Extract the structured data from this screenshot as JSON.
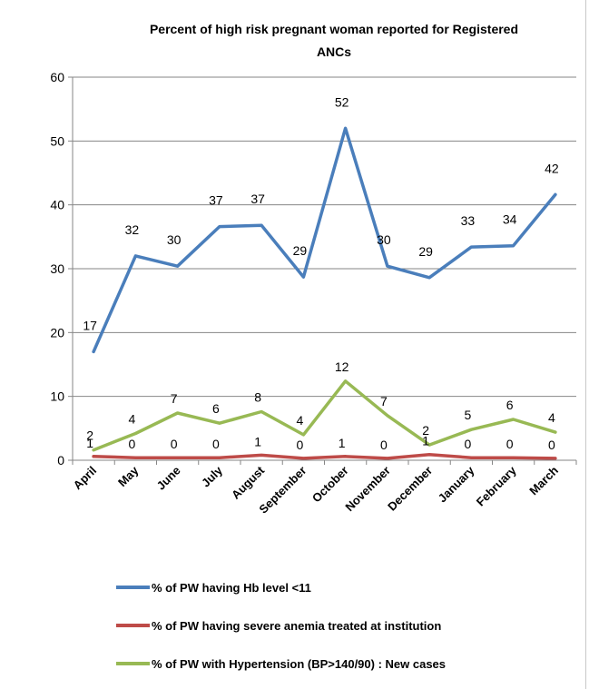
{
  "chart_data": {
    "type": "line",
    "title": "Percent of high risk pregnant woman reported for Registered ANCs",
    "title_lines": [
      "Percent of high risk pregnant woman reported for Registered",
      "ANCs"
    ],
    "xlabel": "",
    "ylabel": "",
    "ylim": [
      0,
      60
    ],
    "yticks": [
      0,
      10,
      20,
      30,
      40,
      50,
      60
    ],
    "grid": true,
    "legend_position": "bottom",
    "categories": [
      "April",
      "May",
      "June",
      "July",
      "August",
      "September",
      "October",
      "November",
      "December",
      "January",
      "February",
      "March"
    ],
    "series": [
      {
        "name": "% of PW having Hb level <11",
        "color": "#4a7ebb",
        "values": [
          17,
          32,
          30.4,
          36.6,
          36.8,
          28.7,
          52,
          30.4,
          28.6,
          33.4,
          33.6,
          41.6
        ],
        "labels": [
          "17",
          "32",
          "30",
          "37",
          "37",
          "29",
          "52",
          "30",
          "29",
          "33",
          "34",
          "42"
        ]
      },
      {
        "name": "% of PW having severe anemia treated at institution",
        "color": "#be4b48",
        "values": [
          0.6,
          0.4,
          0.4,
          0.4,
          0.8,
          0.3,
          0.6,
          0.3,
          0.9,
          0.4,
          0.4,
          0.3
        ],
        "labels": [
          "1",
          "0",
          "0",
          "0",
          "1",
          "0",
          "1",
          "0",
          "1",
          "0",
          "0",
          "0"
        ]
      },
      {
        "name": "% of PW with Hypertension (BP>140/90) : New cases",
        "color": "#98b954",
        "values": [
          1.6,
          4.2,
          7.4,
          5.8,
          7.6,
          4.0,
          12.4,
          7.0,
          2.4,
          4.8,
          6.4,
          4.4
        ],
        "labels": [
          "2",
          "4",
          "7",
          "6",
          "8",
          "4",
          "12",
          "7",
          "2",
          "5",
          "6",
          "4"
        ]
      }
    ]
  }
}
